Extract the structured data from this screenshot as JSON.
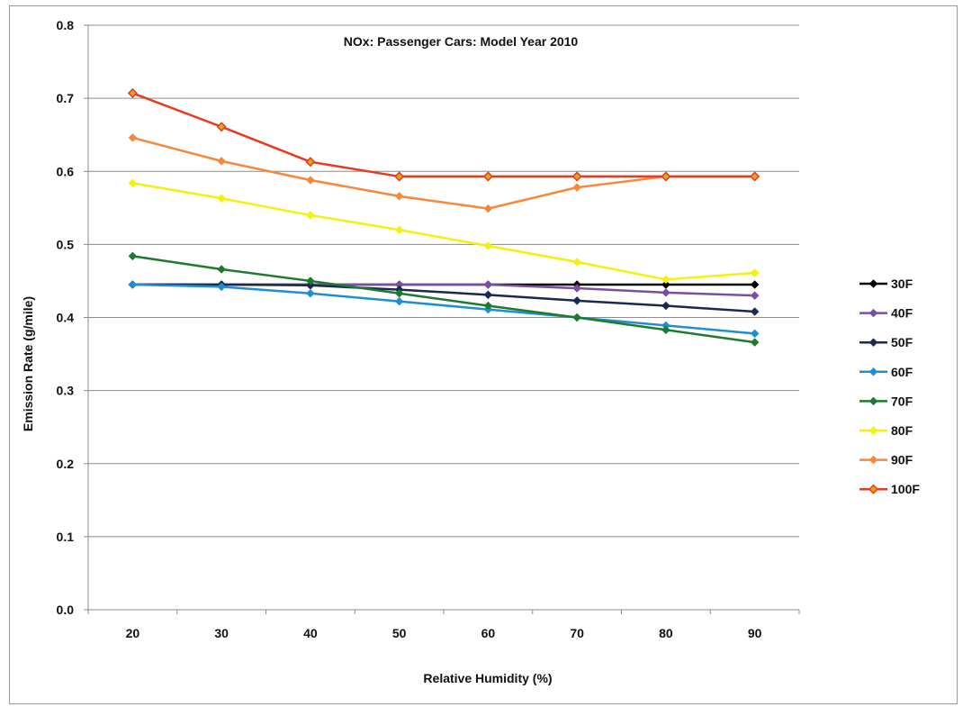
{
  "chart_data": {
    "type": "line",
    "title": "NOx: Passenger Cars: Model Year 2010",
    "xlabel": "Relative Humidity (%)",
    "ylabel": "Emission Rate (g/mile)",
    "x": [
      20,
      30,
      40,
      50,
      60,
      70,
      80,
      90
    ],
    "ylim": [
      0,
      0.8
    ],
    "yticks": [
      0.0,
      0.1,
      0.2,
      0.3,
      0.4,
      0.5,
      0.6,
      0.7,
      0.8
    ],
    "ytick_labels": [
      "0.0",
      "0.1",
      "0.2",
      "0.3",
      "0.4",
      "0.5",
      "0.6",
      "0.7",
      "0.8"
    ],
    "xtick_labels": [
      "20",
      "30",
      "40",
      "50",
      "60",
      "70",
      "80",
      "90"
    ],
    "grid": "horizontal",
    "legend_position": "right",
    "series": [
      {
        "name": "30F",
        "color": "#000000",
        "values": [
          0.445,
          0.445,
          0.445,
          0.445,
          0.445,
          0.445,
          0.445,
          0.445
        ]
      },
      {
        "name": "40F",
        "color": "#7a4fa3",
        "values": [
          0.445,
          0.445,
          0.445,
          0.445,
          0.445,
          0.44,
          0.434,
          0.43
        ]
      },
      {
        "name": "50F",
        "color": "#1a2a4e",
        "values": [
          0.445,
          0.445,
          0.444,
          0.438,
          0.431,
          0.423,
          0.416,
          0.408
        ]
      },
      {
        "name": "60F",
        "color": "#1e8fd5",
        "values": [
          0.445,
          0.442,
          0.433,
          0.422,
          0.411,
          0.4,
          0.389,
          0.378
        ]
      },
      {
        "name": "70F",
        "color": "#1e7a2e",
        "values": [
          0.484,
          0.466,
          0.45,
          0.433,
          0.416,
          0.4,
          0.383,
          0.366
        ]
      },
      {
        "name": "80F",
        "color": "#f2f20a",
        "values": [
          0.584,
          0.563,
          0.54,
          0.52,
          0.498,
          0.476,
          0.452,
          0.461
        ]
      },
      {
        "name": "90F",
        "color": "#f5883c",
        "values": [
          0.646,
          0.614,
          0.588,
          0.566,
          0.549,
          0.578,
          0.593,
          0.593
        ]
      },
      {
        "name": "100F",
        "color": "#e83a1e",
        "marker_fill": "#e0a51c",
        "values": [
          0.707,
          0.661,
          0.613,
          0.593,
          0.593,
          0.593,
          0.593,
          0.593
        ]
      }
    ]
  }
}
